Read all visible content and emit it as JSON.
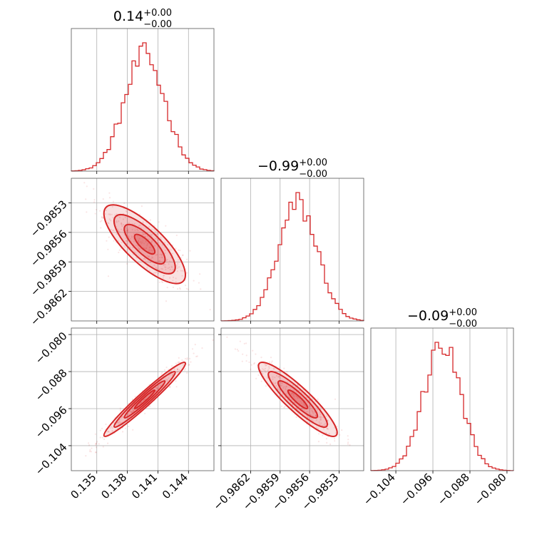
{
  "chart_data": {
    "type": "corner",
    "color": "#d62728",
    "grid": true,
    "parameters": [
      {
        "title_value": "0.14",
        "title_upper": "+0.00",
        "title_lower": "−0.00",
        "range": [
          0.1325,
          0.1465
        ],
        "ticks": [
          0.135,
          0.138,
          0.141,
          0.144
        ],
        "tick_labels": [
          "0.135",
          "0.138",
          "0.141",
          "0.144"
        ],
        "mean": 0.1397,
        "sd": 0.002
      },
      {
        "title_value": "−0.99",
        "title_upper": "+0.00",
        "title_lower": "−0.00",
        "range": [
          -0.9865,
          -0.98505
        ],
        "ticks": [
          -0.9862,
          -0.9859,
          -0.9856,
          -0.9853
        ],
        "tick_labels": [
          "−0.9862",
          "−0.9859",
          "−0.9856",
          "−0.9853"
        ],
        "mean": -0.98572,
        "sd": 0.0002
      },
      {
        "title_value": "−0.09",
        "title_upper": "+0.00",
        "title_lower": "−0.00",
        "range": [
          -0.1094,
          -0.0786
        ],
        "ticks": [
          -0.104,
          -0.096,
          -0.088,
          -0.08
        ],
        "tick_labels": [
          "−0.104",
          "−0.096",
          "−0.088",
          "−0.080"
        ],
        "mean": -0.094,
        "sd": 0.004
      }
    ],
    "correlations": {
      "1_0": -0.78,
      "2_0": 0.97,
      "2_1": -0.9
    }
  }
}
